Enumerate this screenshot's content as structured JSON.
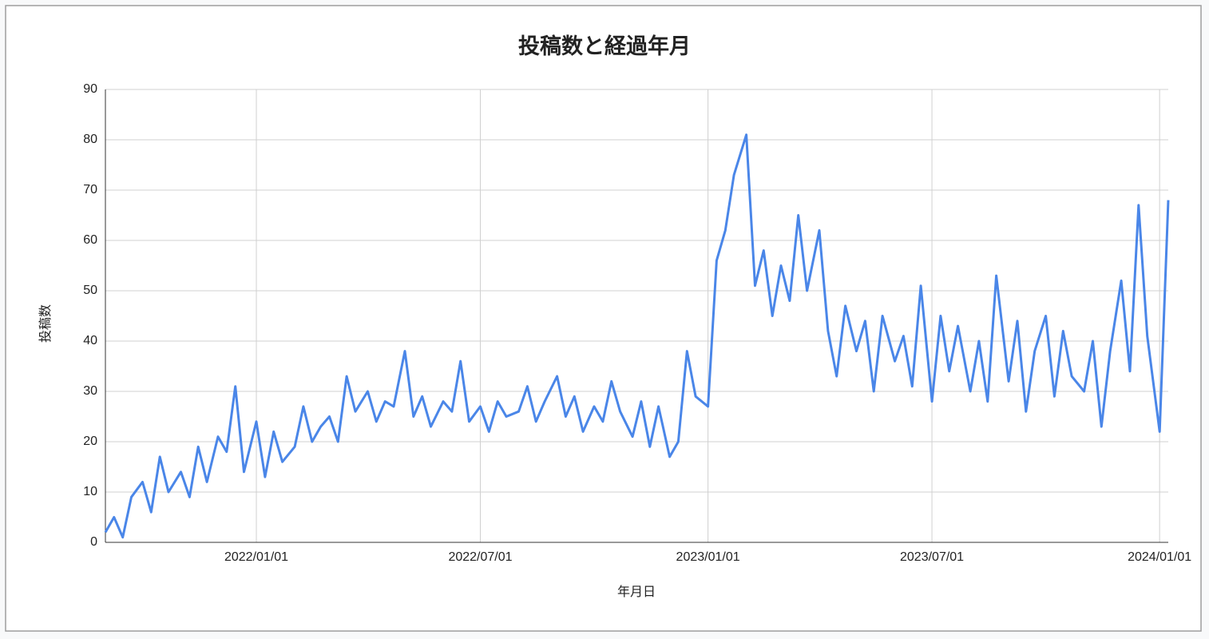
{
  "chart_data": {
    "type": "line",
    "title": "投稿数と経過年月",
    "x_label": "年月日",
    "y_label": "投稿数",
    "x": [
      "2021/09/01",
      "2021/09/08",
      "2021/09/15",
      "2021/09/22",
      "2021/10/01",
      "2021/10/08",
      "2021/10/15",
      "2021/10/22",
      "2021/11/01",
      "2021/11/08",
      "2021/11/15",
      "2021/11/22",
      "2021/12/01",
      "2021/12/08",
      "2021/12/15",
      "2021/12/22",
      "2022/01/01",
      "2022/01/08",
      "2022/01/15",
      "2022/01/22",
      "2022/02/01",
      "2022/02/08",
      "2022/02/15",
      "2022/02/22",
      "2022/03/01",
      "2022/03/08",
      "2022/03/15",
      "2022/03/22",
      "2022/04/01",
      "2022/04/08",
      "2022/04/15",
      "2022/04/22",
      "2022/05/01",
      "2022/05/08",
      "2022/05/15",
      "2022/05/22",
      "2022/06/01",
      "2022/06/08",
      "2022/06/15",
      "2022/06/22",
      "2022/07/01",
      "2022/07/08",
      "2022/07/15",
      "2022/07/22",
      "2022/08/01",
      "2022/08/08",
      "2022/08/15",
      "2022/08/22",
      "2022/09/01",
      "2022/09/08",
      "2022/09/15",
      "2022/09/22",
      "2022/10/01",
      "2022/10/08",
      "2022/10/15",
      "2022/10/22",
      "2022/11/01",
      "2022/11/08",
      "2022/11/15",
      "2022/11/22",
      "2022/12/01",
      "2022/12/08",
      "2022/12/15",
      "2022/12/22",
      "2023/01/01",
      "2023/01/08",
      "2023/01/15",
      "2023/01/22",
      "2023/02/01",
      "2023/02/08",
      "2023/02/15",
      "2023/02/22",
      "2023/03/01",
      "2023/03/08",
      "2023/03/15",
      "2023/03/22",
      "2023/04/01",
      "2023/04/08",
      "2023/04/15",
      "2023/04/22",
      "2023/05/01",
      "2023/05/08",
      "2023/05/15",
      "2023/05/22",
      "2023/06/01",
      "2023/06/08",
      "2023/06/15",
      "2023/06/22",
      "2023/07/01",
      "2023/07/08",
      "2023/07/15",
      "2023/07/22",
      "2023/08/01",
      "2023/08/08",
      "2023/08/15",
      "2023/08/22",
      "2023/09/01",
      "2023/09/08",
      "2023/09/15",
      "2023/09/22",
      "2023/10/01",
      "2023/10/08",
      "2023/10/15",
      "2023/10/22",
      "2023/11/01",
      "2023/11/08",
      "2023/11/15",
      "2023/11/22",
      "2023/12/01",
      "2023/12/08",
      "2023/12/15",
      "2023/12/22",
      "2024/01/01",
      "2024/01/08"
    ],
    "values": [
      2,
      5,
      1,
      9,
      12,
      6,
      17,
      10,
      14,
      9,
      19,
      12,
      21,
      18,
      31,
      14,
      24,
      13,
      22,
      16,
      19,
      27,
      20,
      23,
      25,
      20,
      33,
      26,
      30,
      24,
      28,
      27,
      38,
      25,
      29,
      23,
      28,
      26,
      36,
      24,
      27,
      22,
      28,
      25,
      26,
      31,
      24,
      28,
      33,
      25,
      29,
      22,
      27,
      24,
      32,
      26,
      21,
      28,
      19,
      27,
      17,
      20,
      38,
      29,
      27,
      56,
      62,
      73,
      81,
      51,
      58,
      45,
      55,
      48,
      65,
      50,
      62,
      42,
      33,
      47,
      38,
      44,
      30,
      45,
      36,
      41,
      31,
      51,
      28,
      45,
      34,
      43,
      30,
      40,
      28,
      53,
      32,
      44,
      26,
      38,
      45,
      29,
      42,
      33,
      30,
      40,
      23,
      38,
      52,
      34,
      67,
      41,
      22,
      68
    ],
    "color": "#4a86e8",
    "xlim": [
      "2021/09/01",
      "2024/01/08"
    ],
    "xticks": [
      "2022/01/01",
      "2022/07/01",
      "2023/01/01",
      "2023/07/01",
      "2024/01/01"
    ],
    "ylim": [
      0,
      90
    ],
    "yticks": [
      0,
      10,
      20,
      30,
      40,
      50,
      60,
      70,
      80,
      90
    ],
    "grid": true
  }
}
